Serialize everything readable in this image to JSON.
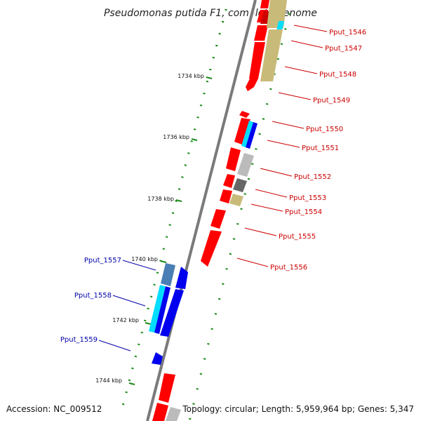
{
  "title": "Pseudomonas putida F1, complete genome",
  "footer": {
    "accession": "Accession: NC_009512",
    "summary": "Topology: circular; Length: 5,959,964 bp; Genes: 5,347"
  },
  "kbp_labels": [
    "1734 kbp",
    "1736 kbp",
    "1738 kbp",
    "1740 kbp",
    "1742 kbp",
    "1744 kbp"
  ],
  "genes_right": [
    "Pput_1546",
    "Pput_1547",
    "Pput_1548",
    "Pput_1549",
    "Pput_1550",
    "Pput_1551",
    "Pput_1552",
    "Pput_1553",
    "Pput_1554",
    "Pput_1555",
    "Pput_1556"
  ],
  "genes_left": [
    "Pput_1557",
    "Pput_1558",
    "Pput_1559"
  ],
  "colors": {
    "backbone": "#7a7a7a",
    "cds_red": "#ff0000",
    "cds_blue": "#0000ee",
    "tan": "#c8bb7a",
    "cyan": "#00ddff",
    "grey": "#bbbbbb",
    "dark_grey": "#666666",
    "steel": "#4a7fb5",
    "tick_green": "#1a8a1a",
    "label_red": "#cc0000",
    "label_blue": "#0000aa"
  }
}
